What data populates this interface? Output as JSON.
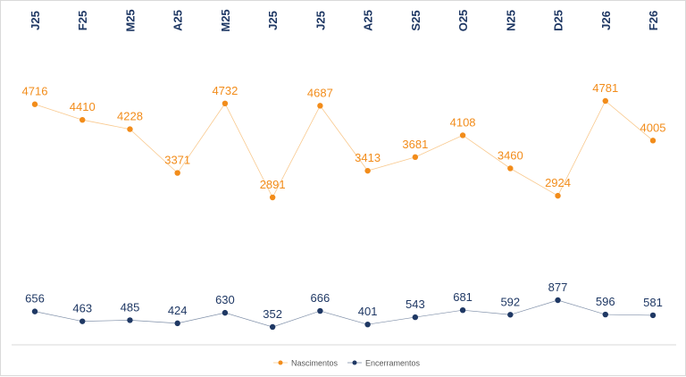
{
  "chart_data": {
    "type": "line",
    "categories": [
      "J25",
      "F25",
      "M25",
      "A25",
      "M25",
      "J25",
      "J25",
      "A25",
      "S25",
      "O25",
      "N25",
      "D25",
      "J26",
      "F26"
    ],
    "series": [
      {
        "name": "Nascimentos",
        "color": "#f28c1a",
        "values": [
          4716,
          4410,
          4228,
          3371,
          4732,
          2891,
          4687,
          3413,
          3681,
          4108,
          3460,
          2924,
          4781,
          4005
        ]
      },
      {
        "name": "Encerramentos",
        "color": "#1f3864",
        "values": [
          656,
          463,
          485,
          424,
          630,
          352,
          666,
          401,
          543,
          681,
          592,
          877,
          596,
          581
        ]
      }
    ],
    "legend_position": "bottom",
    "grid": false,
    "x_tick_labels_position": "top",
    "x_tick_labels_rotated": true
  }
}
